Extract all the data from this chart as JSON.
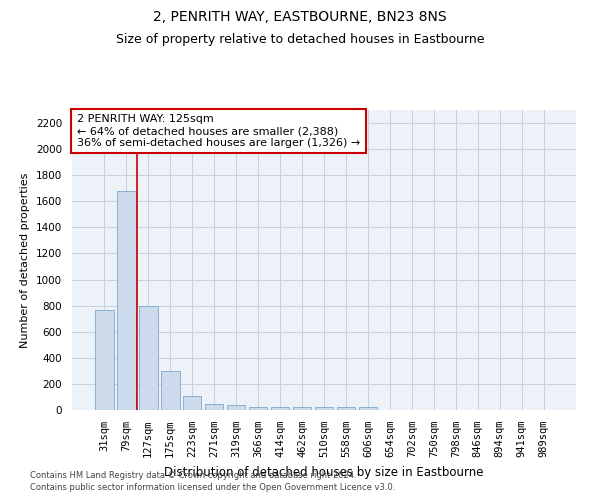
{
  "title": "2, PENRITH WAY, EASTBOURNE, BN23 8NS",
  "subtitle": "Size of property relative to detached houses in Eastbourne",
  "xlabel": "Distribution of detached houses by size in Eastbourne",
  "ylabel": "Number of detached properties",
  "footnote1": "Contains HM Land Registry data © Crown copyright and database right 2024.",
  "footnote2": "Contains public sector information licensed under the Open Government Licence v3.0.",
  "categories": [
    "31sqm",
    "79sqm",
    "127sqm",
    "175sqm",
    "223sqm",
    "271sqm",
    "319sqm",
    "366sqm",
    "414sqm",
    "462sqm",
    "510sqm",
    "558sqm",
    "606sqm",
    "654sqm",
    "702sqm",
    "750sqm",
    "798sqm",
    "846sqm",
    "894sqm",
    "941sqm",
    "989sqm"
  ],
  "values": [
    770,
    1680,
    800,
    300,
    110,
    45,
    35,
    25,
    25,
    20,
    20,
    20,
    20,
    0,
    0,
    0,
    0,
    0,
    0,
    0,
    0
  ],
  "bar_color": "#ccdaeb",
  "bar_edge_color": "#7ba8cc",
  "grid_color": "#c5cfe0",
  "background_color": "#edf1f8",
  "annotation_text": "2 PENRITH WAY: 125sqm\n← 64% of detached houses are smaller (2,388)\n36% of semi-detached houses are larger (1,326) →",
  "annotation_box_color": "#cc0000",
  "red_line_color": "#cc0000",
  "ylim": [
    0,
    2300
  ],
  "yticks": [
    0,
    200,
    400,
    600,
    800,
    1000,
    1200,
    1400,
    1600,
    1800,
    2000,
    2200
  ],
  "title_fontsize": 10,
  "subtitle_fontsize": 9,
  "ylabel_fontsize": 8,
  "xlabel_fontsize": 8.5,
  "tick_fontsize": 7.5,
  "annotation_fontsize": 8,
  "footnote_fontsize": 6
}
